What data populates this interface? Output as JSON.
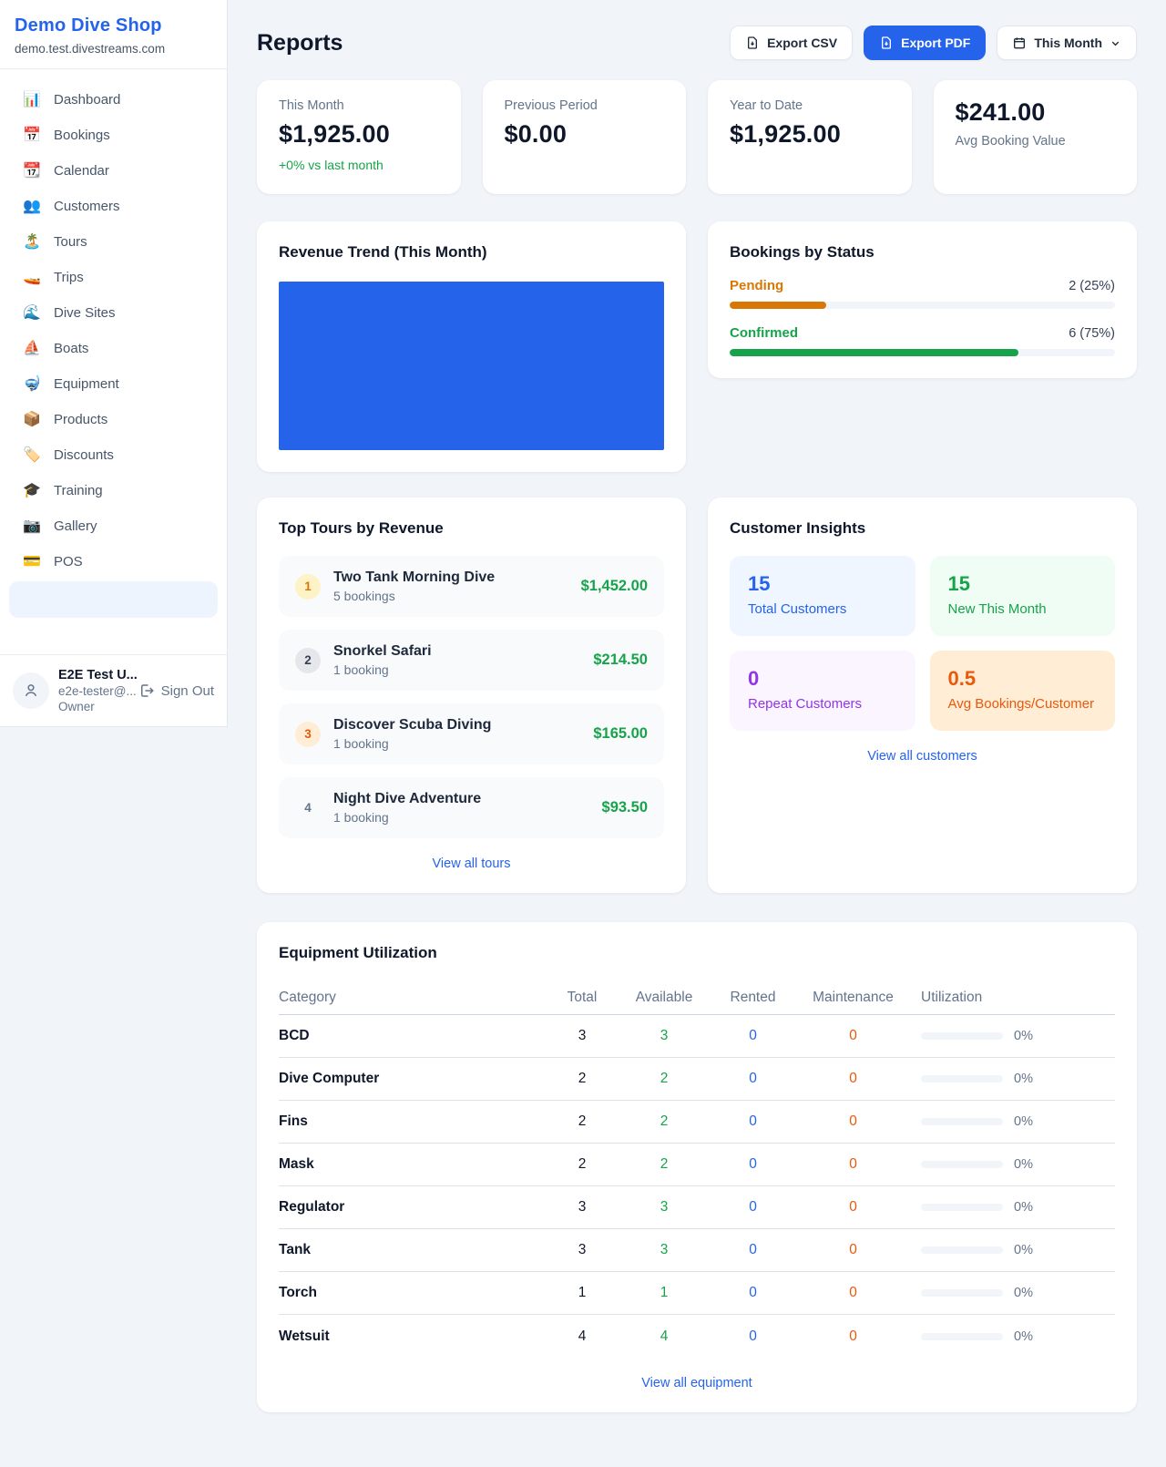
{
  "colors": {
    "accent_blue": "#2563eb",
    "green": "#16a34a",
    "amber": "#d97706",
    "orange": "#ea580c",
    "purple": "#9333ea",
    "page_bg": "#f1f5f9"
  },
  "sidebar": {
    "brand": "Demo Dive Shop",
    "domain": "demo.test.divestreams.com",
    "items": [
      {
        "icon": "📊",
        "label": "Dashboard"
      },
      {
        "icon": "📅",
        "label": "Bookings"
      },
      {
        "icon": "📆",
        "label": "Calendar"
      },
      {
        "icon": "👥",
        "label": "Customers"
      },
      {
        "icon": "🏝️",
        "label": "Tours"
      },
      {
        "icon": "🚤",
        "label": "Trips"
      },
      {
        "icon": "🌊",
        "label": "Dive Sites"
      },
      {
        "icon": "⛵",
        "label": "Boats"
      },
      {
        "icon": "🤿",
        "label": "Equipment"
      },
      {
        "icon": "📦",
        "label": "Products"
      },
      {
        "icon": "🏷️",
        "label": "Discounts"
      },
      {
        "icon": "🎓",
        "label": "Training"
      },
      {
        "icon": "📷",
        "label": "Gallery"
      },
      {
        "icon": "💳",
        "label": "POS"
      }
    ],
    "has_partial_active_item": true,
    "user": {
      "name": "E2E Test U...",
      "email": "e2e-tester@...",
      "role": "Owner",
      "signout_label": "Sign Out"
    }
  },
  "header": {
    "title": "Reports",
    "export_csv_label": "Export CSV",
    "export_pdf_label": "Export PDF",
    "period_label": "This Month"
  },
  "stats": [
    {
      "label": "This Month",
      "value": "$1,925.00",
      "delta": "+0% vs last month",
      "value_first": false
    },
    {
      "label": "Previous Period",
      "value": "$0.00",
      "delta": "",
      "value_first": false
    },
    {
      "label": "Year to Date",
      "value": "$1,925.00",
      "delta": "",
      "value_first": false
    },
    {
      "label": "Avg Booking Value",
      "value": "$241.00",
      "delta": "",
      "value_first": true
    }
  ],
  "revenue_trend": {
    "title": "Revenue Trend (This Month)"
  },
  "bookings_by_status": {
    "title": "Bookings by Status",
    "rows": [
      {
        "label": "Pending",
        "count_text": "2 (25%)",
        "pct": 25,
        "color": "#d97706"
      },
      {
        "label": "Confirmed",
        "count_text": "6 (75%)",
        "pct": 75,
        "color": "#16a34a"
      }
    ]
  },
  "chart_data": [
    {
      "type": "bar",
      "title": "Revenue Trend (This Month)",
      "categories": [
        "This Month"
      ],
      "values": [
        1925
      ],
      "bar_color": "#2563eb",
      "xlabel": "",
      "ylabel": "",
      "note": "single full-width solid bar, no axes or gridlines visible"
    },
    {
      "type": "bar",
      "title": "Bookings by Status",
      "categories": [
        "Pending",
        "Confirmed"
      ],
      "values": [
        2,
        6
      ],
      "percentages": [
        25,
        75
      ],
      "series_colors": [
        "#d97706",
        "#16a34a"
      ],
      "note": "horizontal progress bars with right-aligned count (percent) labels"
    }
  ],
  "top_tours": {
    "title": "Top Tours by Revenue",
    "rows": [
      {
        "rank": "1",
        "name": "Two Tank Morning Dive",
        "bookings": "5 bookings",
        "revenue": "$1,452.00",
        "badge_bg": "#fef3c7",
        "badge_color": "#d97706"
      },
      {
        "rank": "2",
        "name": "Snorkel Safari",
        "bookings": "1 booking",
        "revenue": "$214.50",
        "badge_bg": "#e5e7eb",
        "badge_color": "#374151"
      },
      {
        "rank": "3",
        "name": "Discover Scuba Diving",
        "bookings": "1 booking",
        "revenue": "$165.00",
        "badge_bg": "#ffedd5",
        "badge_color": "#ea580c"
      },
      {
        "rank": "4",
        "name": "Night Dive Adventure",
        "bookings": "1 booking",
        "revenue": "$93.50",
        "badge_bg": "transparent",
        "badge_color": "#64748b"
      }
    ],
    "link_label": "View all tours"
  },
  "customer_insights": {
    "title": "Customer Insights",
    "tiles": [
      {
        "value": "15",
        "label": "Total Customers",
        "bg": "#eff6ff",
        "color": "#2563eb"
      },
      {
        "value": "15",
        "label": "New This Month",
        "bg": "#f0fdf4",
        "color": "#16a34a"
      },
      {
        "value": "0",
        "label": "Repeat Customers",
        "bg": "#faf5ff",
        "color": "#9333ea"
      },
      {
        "value": "0.5",
        "label": "Avg Bookings/Customer",
        "bg": "#ffedd5",
        "color": "#ea580c"
      }
    ],
    "link_label": "View all customers"
  },
  "equipment": {
    "title": "Equipment Utilization",
    "columns": [
      "Category",
      "Total",
      "Available",
      "Rented",
      "Maintenance",
      "Utilization"
    ],
    "rows": [
      {
        "category": "BCD",
        "total": "3",
        "available": "3",
        "rented": "0",
        "maintenance": "0",
        "utilization_pct": 0,
        "utilization_text": "0%"
      },
      {
        "category": "Dive Computer",
        "total": "2",
        "available": "2",
        "rented": "0",
        "maintenance": "0",
        "utilization_pct": 0,
        "utilization_text": "0%"
      },
      {
        "category": "Fins",
        "total": "2",
        "available": "2",
        "rented": "0",
        "maintenance": "0",
        "utilization_pct": 0,
        "utilization_text": "0%"
      },
      {
        "category": "Mask",
        "total": "2",
        "available": "2",
        "rented": "0",
        "maintenance": "0",
        "utilization_pct": 0,
        "utilization_text": "0%"
      },
      {
        "category": "Regulator",
        "total": "3",
        "available": "3",
        "rented": "0",
        "maintenance": "0",
        "utilization_pct": 0,
        "utilization_text": "0%"
      },
      {
        "category": "Tank",
        "total": "3",
        "available": "3",
        "rented": "0",
        "maintenance": "0",
        "utilization_pct": 0,
        "utilization_text": "0%"
      },
      {
        "category": "Torch",
        "total": "1",
        "available": "1",
        "rented": "0",
        "maintenance": "0",
        "utilization_pct": 0,
        "utilization_text": "0%"
      },
      {
        "category": "Wetsuit",
        "total": "4",
        "available": "4",
        "rented": "0",
        "maintenance": "0",
        "utilization_pct": 0,
        "utilization_text": "0%"
      }
    ],
    "link_label": "View all equipment"
  }
}
